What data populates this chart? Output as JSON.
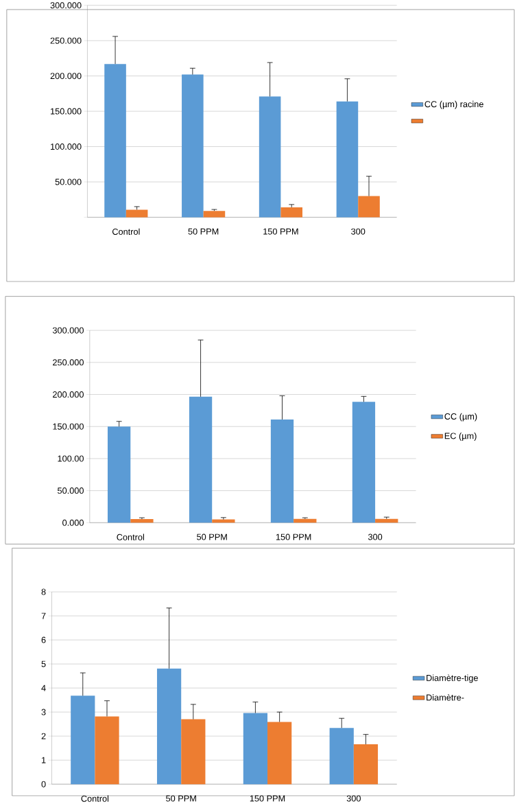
{
  "chart_data": [
    {
      "type": "bar",
      "categories": [
        "Control",
        "50 PPM",
        "150 PPM",
        "300"
      ],
      "series": [
        {
          "name": "CC (µm) racine",
          "color": "#5b9bd5",
          "values": [
            217,
            202,
            171,
            164
          ],
          "errors": [
            [
              217,
              256
            ],
            [
              202,
              211
            ],
            [
              171,
              219
            ],
            [
              164,
              196
            ]
          ]
        },
        {
          "color": "#ed7d31",
          "values": [
            10.7,
            9,
            14,
            30
          ],
          "errors": [
            [
              10.7,
              15
            ],
            [
              9,
              11
            ],
            [
              14,
              18
            ],
            [
              30,
              58
            ]
          ]
        }
      ],
      "ylim": [
        0,
        300
      ],
      "yticks": [
        {
          "value": 0,
          "label": null
        },
        {
          "value": 50,
          "label": "50.000"
        },
        {
          "value": 100,
          "label": "100.000"
        },
        {
          "value": 150,
          "label": "150.000"
        },
        {
          "value": 200,
          "label": "200.000"
        },
        {
          "value": 250,
          "label": "250.000"
        },
        {
          "value": 300,
          "label": "300.000"
        }
      ],
      "grid": "y",
      "legend": "right"
    },
    {
      "type": "bar",
      "categories": [
        "Control",
        "50 PPM",
        "150 PPM",
        "300"
      ],
      "series": [
        {
          "name": "CC (µm)",
          "color": "#5b9bd5",
          "values": [
            150,
            196.5,
            161,
            188.5
          ],
          "errors": [
            [
              150,
              158
            ],
            [
              196.5,
              285
            ],
            [
              161,
              198
            ],
            [
              188.5,
              197
            ]
          ]
        },
        {
          "name": "EC (µm)",
          "color": "#ed7d31",
          "values": [
            5.6,
            5,
            6,
            6
          ],
          "errors": [
            [
              5.6,
              7.7
            ],
            [
              5,
              8
            ],
            [
              6,
              7.7
            ],
            [
              6,
              8.7
            ]
          ]
        }
      ],
      "ylim": [
        0,
        300
      ],
      "yticks": [
        {
          "value": 0,
          "label": "0.000"
        },
        {
          "value": 50,
          "label": "50.000"
        },
        {
          "value": 100,
          "label": "100.00"
        },
        {
          "value": 150,
          "label": "150.000"
        },
        {
          "value": 200,
          "label": "200.000"
        },
        {
          "value": 250,
          "label": "250.000"
        },
        {
          "value": 300,
          "label": "300.000"
        }
      ],
      "grid": "y",
      "legend": "right"
    },
    {
      "type": "bar",
      "categories": [
        "Control",
        "50 PPM",
        "150 PPM",
        "300"
      ],
      "series": [
        {
          "name": "Diamètre-tige",
          "color": "#5b9bd5",
          "values": [
            3.68,
            4.81,
            2.96,
            2.34
          ],
          "errors": [
            [
              3.68,
              4.63
            ],
            [
              4.81,
              7.33
            ],
            [
              2.96,
              3.42
            ],
            [
              2.34,
              2.74
            ]
          ]
        },
        {
          "name": "Diamètre-",
          "color": "#ed7d31",
          "values": [
            2.82,
            2.7,
            2.59,
            1.66
          ],
          "errors": [
            [
              2.82,
              3.47
            ],
            [
              2.7,
              3.32
            ],
            [
              2.59,
              3.0
            ],
            [
              1.66,
              2.07
            ]
          ]
        }
      ],
      "ylim": [
        0,
        8
      ],
      "yticks": [
        0,
        1,
        2,
        3,
        4,
        5,
        6,
        7,
        8
      ],
      "grid": "y",
      "legend": "right"
    }
  ]
}
